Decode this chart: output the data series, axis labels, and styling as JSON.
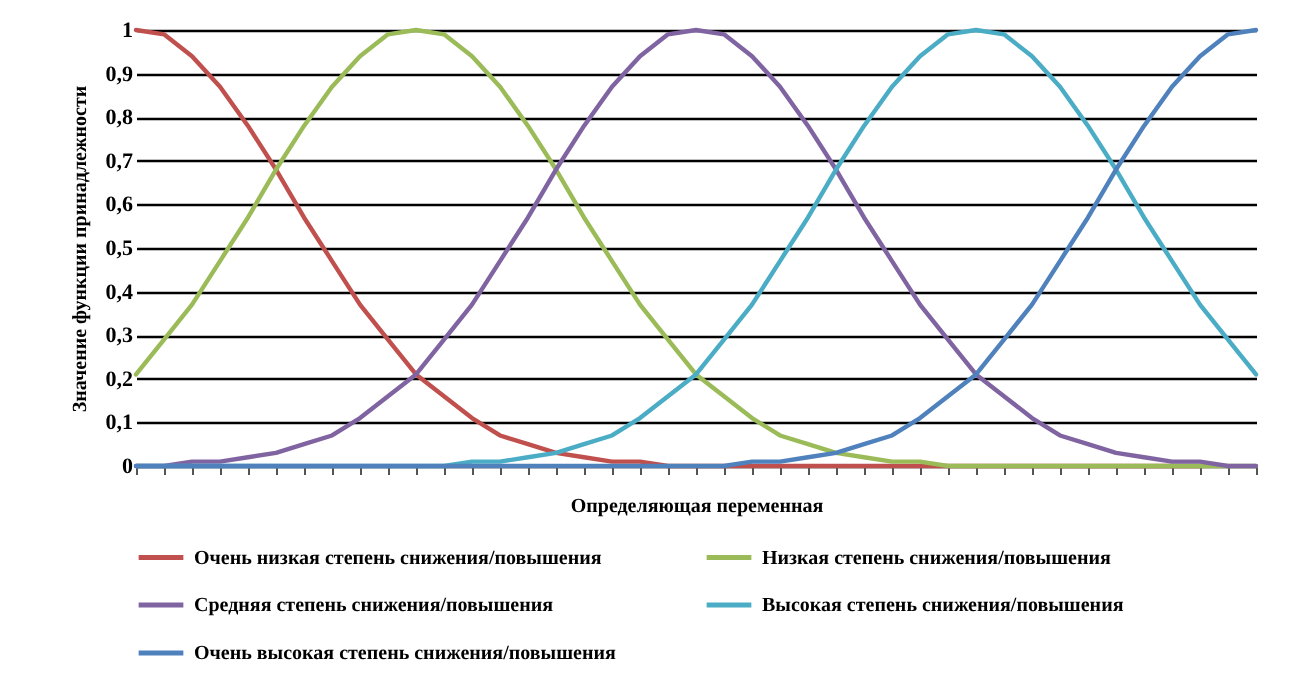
{
  "chart_data": {
    "type": "line",
    "xlabel": "Определяющая переменная",
    "ylabel": "Значение функции принадлежности",
    "categories": [
      null,
      null,
      null,
      null,
      null,
      null,
      null,
      null,
      null,
      null,
      null,
      null,
      null,
      null,
      null,
      null,
      null,
      null,
      null,
      null,
      null,
      null,
      null,
      null,
      null,
      null,
      null,
      null,
      null,
      null,
      null,
      null,
      null,
      null,
      null,
      null,
      null,
      null,
      null,
      null,
      null
    ],
    "series": [
      {
        "name": "Очень низкая степень снижения/повышения",
        "color": "#c0504d",
        "values": [
          1,
          0.99,
          0.94,
          0.87,
          0.78,
          0.68,
          0.57,
          0.47,
          0.37,
          0.29,
          0.21,
          0.16,
          0.11,
          0.07,
          0.05,
          0.03,
          0.02,
          0.01,
          0.01,
          0,
          0,
          0,
          0,
          0,
          0,
          0,
          0,
          0,
          0,
          0,
          0,
          0,
          0,
          0,
          0,
          0,
          0,
          0,
          0,
          null,
          null
        ]
      },
      {
        "name": "Низкая степень снижения/повышения",
        "color": "#9bbb59",
        "values": [
          0.21,
          0.29,
          0.37,
          0.47,
          0.57,
          0.68,
          0.78,
          0.87,
          0.94,
          0.99,
          1,
          0.99,
          0.94,
          0.87,
          0.78,
          0.68,
          0.57,
          0.47,
          0.37,
          0.29,
          0.21,
          0.16,
          0.11,
          0.07,
          0.05,
          0.03,
          0.02,
          0.01,
          0.01,
          0,
          0,
          0,
          0,
          0,
          0,
          0,
          0,
          0,
          0,
          0,
          0
        ]
      },
      {
        "name": "Средняя степень снижения/повышения",
        "color": "#8064a2",
        "values": [
          0,
          0,
          0.01,
          0.01,
          0.02,
          0.03,
          0.05,
          0.07,
          0.11,
          0.16,
          0.21,
          0.29,
          0.37,
          0.47,
          0.57,
          0.68,
          0.78,
          0.87,
          0.94,
          0.99,
          1,
          0.99,
          0.94,
          0.87,
          0.78,
          0.68,
          0.57,
          0.47,
          0.37,
          0.29,
          0.21,
          0.16,
          0.11,
          0.07,
          0.05,
          0.03,
          0.02,
          0.01,
          0.01,
          0,
          0
        ]
      },
      {
        "name": "Высокая степень снижения/повышения",
        "color": "#4bacc6",
        "values": [
          0,
          0,
          0,
          0,
          0,
          0,
          0,
          0,
          0,
          0,
          0,
          0,
          0.01,
          0.01,
          0.02,
          0.03,
          0.05,
          0.07,
          0.11,
          0.16,
          0.21,
          0.29,
          0.37,
          0.47,
          0.57,
          0.68,
          0.78,
          0.87,
          0.94,
          0.99,
          1,
          0.99,
          0.94,
          0.87,
          0.78,
          0.68,
          0.57,
          0.47,
          0.37,
          0.29,
          0.21
        ]
      },
      {
        "name": "Очень высокая степень снижения/повышения",
        "color": "#4f81bd",
        "values": [
          0,
          0,
          0,
          0,
          0,
          0,
          0,
          0,
          0,
          0,
          0,
          0,
          0,
          0,
          0,
          0,
          0,
          0,
          0,
          0,
          0,
          0,
          0.01,
          0.01,
          0.02,
          0.03,
          0.05,
          0.07,
          0.11,
          0.16,
          0.21,
          0.29,
          0.37,
          0.47,
          0.57,
          0.68,
          0.78,
          0.87,
          0.94,
          0.99,
          1
        ]
      }
    ],
    "ylim": [
      0,
      1
    ],
    "yticks": [
      0,
      {
        "value": 0.1,
        "label": "0,1"
      },
      {
        "value": 0.2,
        "label": "0,2"
      },
      {
        "value": 0.3,
        "label": "0,3"
      },
      {
        "value": 0.4,
        "label": "0,4"
      },
      {
        "value": 0.5,
        "label": "0,5"
      },
      {
        "value": 0.6,
        "label": "0,6"
      },
      {
        "value": 0.7,
        "label": "0,7"
      },
      {
        "value": 0.8,
        "label": "0,8"
      },
      {
        "value": 0.9,
        "label": "0,9"
      },
      1
    ],
    "grid": "y",
    "legend": "bottom",
    "line_style": "solid"
  }
}
